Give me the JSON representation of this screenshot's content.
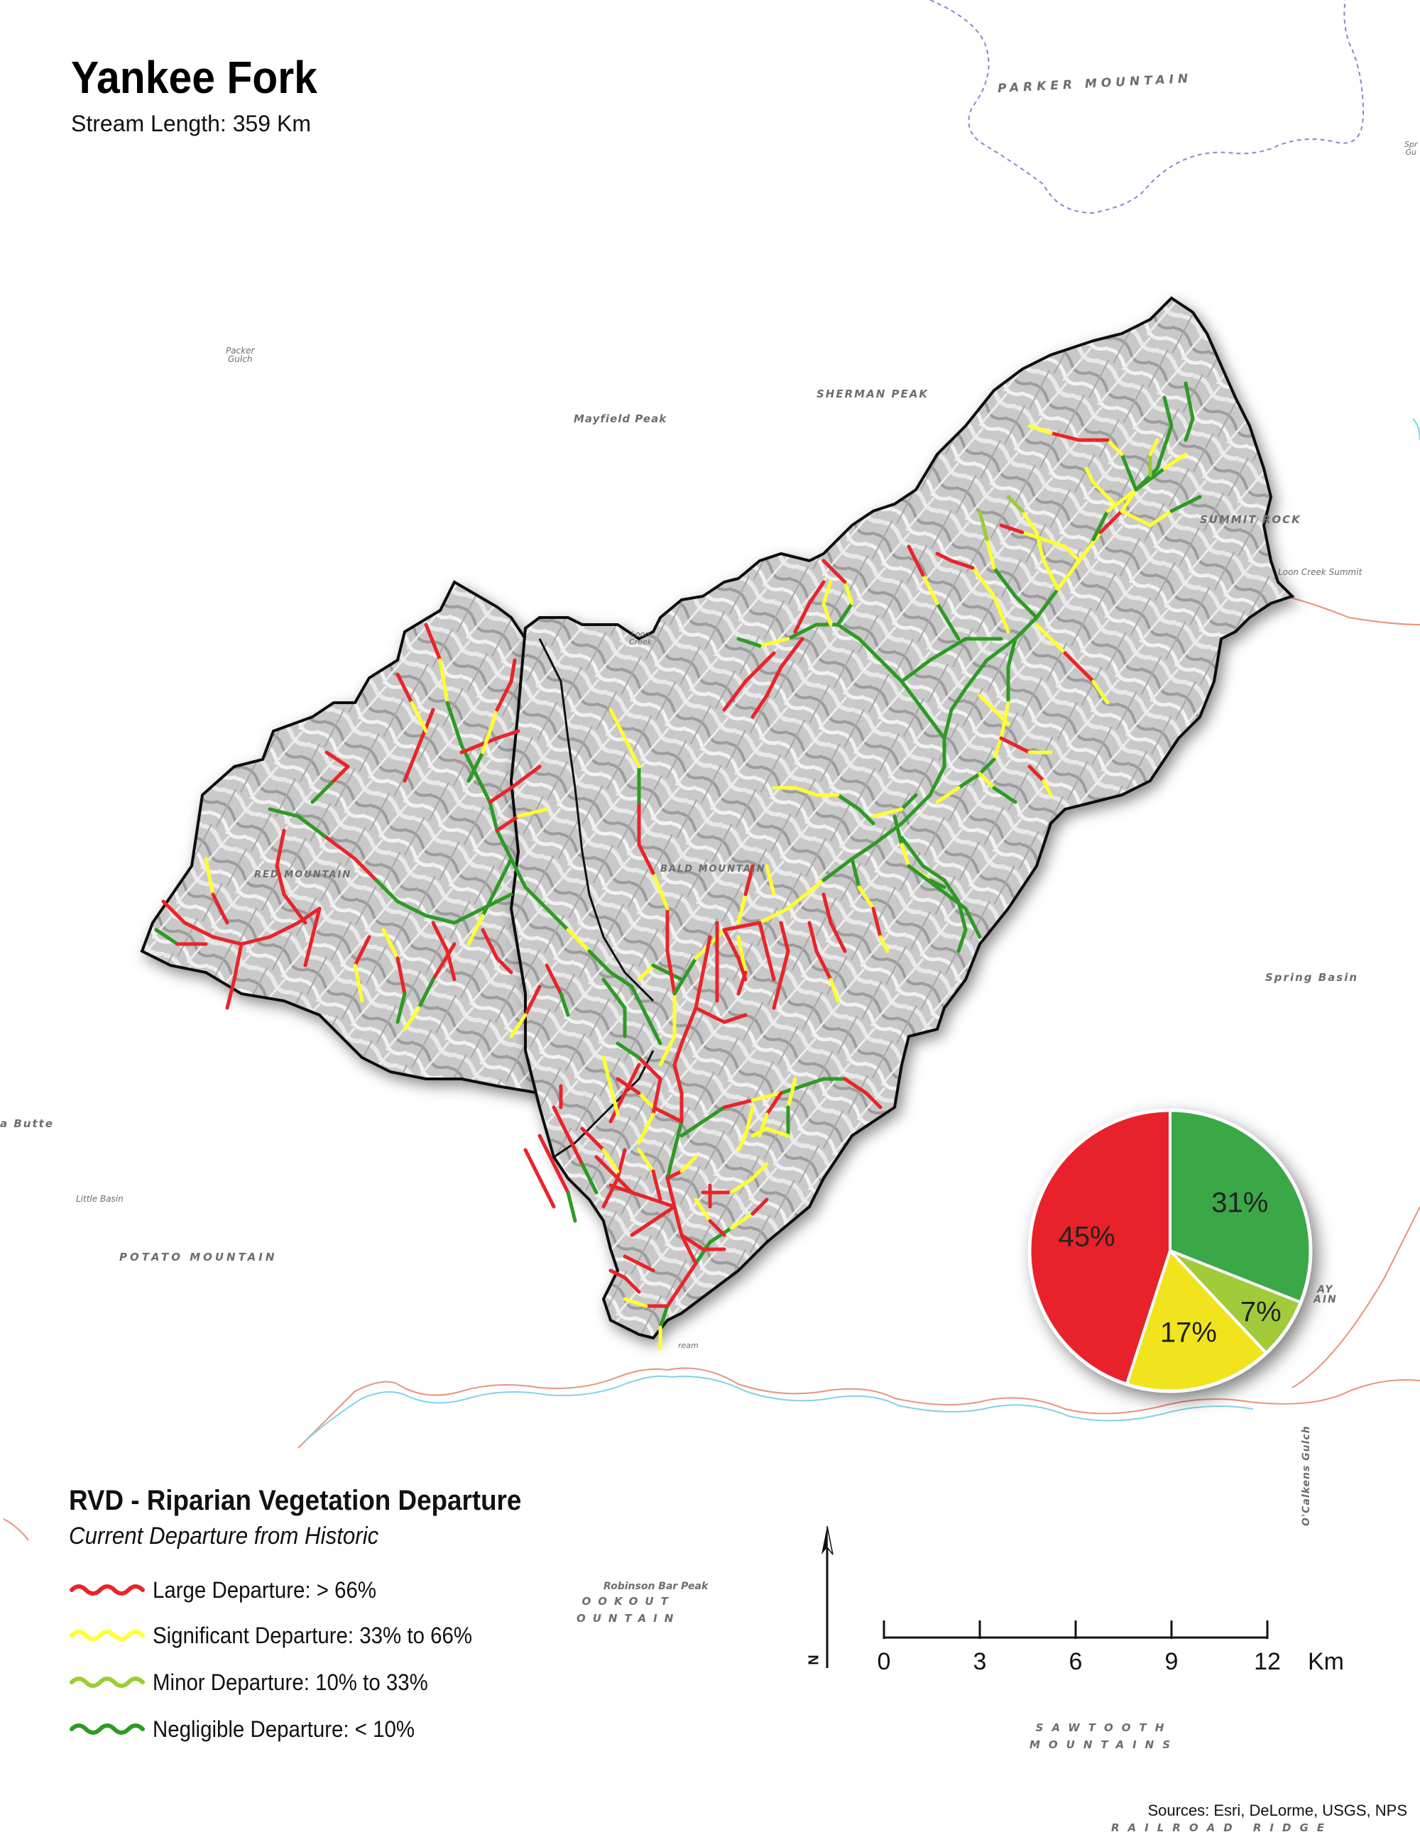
{
  "title": "Yankee Fork",
  "subtitle": "Stream Length: 359 Km",
  "legend": {
    "title": "RVD - Riparian Vegetation Departure",
    "subtitle": "Current Departure from Historic",
    "items": [
      {
        "label": "Large Departure: > 66%",
        "color": "#e8242a"
      },
      {
        "label": "Significant Departure: 33% to 66%",
        "color": "#ffff33"
      },
      {
        "label": "Minor Departure: 10% to 33%",
        "color": "#9acd32"
      },
      {
        "label": "Negligible Departure: < 10%",
        "color": "#2e9a24"
      }
    ]
  },
  "chart_data": {
    "type": "pie",
    "slices": [
      {
        "label": "31%",
        "value": 31,
        "color": "#3aa846"
      },
      {
        "label": "7%",
        "value": 7,
        "color": "#a1cb3a"
      },
      {
        "label": "17%",
        "value": 17,
        "color": "#f1e41c"
      },
      {
        "label": "45%",
        "value": 45,
        "color": "#e8242a"
      }
    ]
  },
  "scale_bar": {
    "ticks": [
      "0",
      "3",
      "6",
      "9",
      "12"
    ],
    "unit": "Km"
  },
  "north_arrow": {
    "letter": "N"
  },
  "place_labels": {
    "parker_mountain": "PARKER MOUNTAIN",
    "sherman_peak": "SHERMAN PEAK",
    "mayfield_peak": "Mayfield Peak",
    "packer_gulch": "Packer\nGulch",
    "summit_rock": "SUMMIT ROCK",
    "loon_creek_summit": "Loon Creek Summit",
    "spring_basin": "Spring Basin",
    "butte": "a Butte",
    "little_basin": "Little Basin",
    "potato_mountain": "POTATO MOUNTAIN",
    "robinson_bar_peak": "Robinson Bar Peak",
    "lookout_mountain": "OOKOUT\nOUNTAIN",
    "sawtooth_mountains": "SAWTOOTH\nMOUNTAINS",
    "ocalkens_gulch": "O'Calkens Gulch",
    "red_mountain": "RED MOUNTAIN",
    "bald_mountain": "BALD MOUNTAIN",
    "loon_creek": "Loon\nCreek",
    "spring_gulch_edge": "Spr\nGu",
    "ay_edge": "AY\nAIN",
    "railroad_ridge": "RAILROAD RIDGE",
    "ream": "ream"
  },
  "sources": "Sources: Esri, DeLorme, USGS, NPS"
}
